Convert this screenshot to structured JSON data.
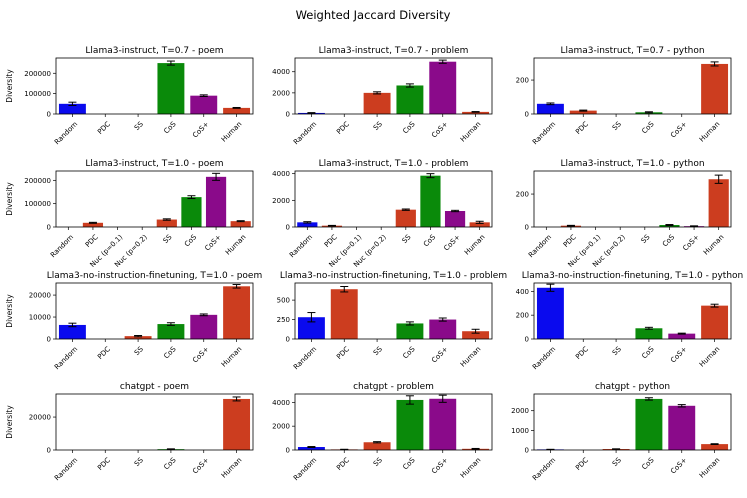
{
  "figure": {
    "title": "Weighted Jaccard Diversity",
    "ylabel": "Diversity"
  },
  "colors": {
    "Random": "#0a0aee",
    "PDC": "#cc3d1f",
    "Nuc (p=0.1)": "#cc3d1f",
    "Nuc (p=0.2)": "#cc3d1f",
    "SS": "#cc3d1f",
    "CoS": "#0a8a0a",
    "CoS+": "#8a0a8a",
    "Human": "#cc3d1f"
  },
  "chart_data": [
    {
      "type": "bar",
      "title": "Llama3-instruct, T=0.7 - poem",
      "categories": [
        "Random",
        "PDC",
        "SS",
        "CoS",
        "CoS+",
        "Human"
      ],
      "values": [
        50000,
        0,
        0,
        250000,
        90000,
        30000
      ],
      "errors": [
        8000,
        0,
        0,
        10000,
        4000,
        2000
      ],
      "ylim": [
        0,
        275000
      ],
      "yticks": [
        0,
        100000,
        200000
      ],
      "yticklabels": [
        "0",
        "100000",
        "200000"
      ],
      "ylabel": "Diversity"
    },
    {
      "type": "bar",
      "title": "Llama3-instruct, T=0.7 - problem",
      "categories": [
        "Random",
        "PDC",
        "SS",
        "CoS",
        "CoS+",
        "Human"
      ],
      "values": [
        100,
        0,
        2000,
        2700,
        4950,
        200
      ],
      "errors": [
        30,
        0,
        100,
        150,
        150,
        30
      ],
      "ylim": [
        0,
        5300
      ],
      "yticks": [
        0,
        2000,
        4000
      ],
      "yticklabels": [
        "0",
        "2000",
        "4000"
      ]
    },
    {
      "type": "bar",
      "title": "Llama3-instruct, T=0.7 - python",
      "categories": [
        "Random",
        "PDC",
        "SS",
        "CoS",
        "CoS+",
        "Human"
      ],
      "values": [
        60,
        20,
        0,
        10,
        0,
        295
      ],
      "errors": [
        5,
        3,
        0,
        3,
        0,
        12
      ],
      "ylim": [
        0,
        330
      ],
      "yticks": [
        0,
        200
      ],
      "yticklabels": [
        "0",
        "200"
      ]
    },
    {
      "type": "bar",
      "title": "Llama3-instruct, T=1.0 - poem",
      "categories": [
        "Random",
        "PDC",
        "Nuc (p=0.1)",
        "Nuc (p=0.2)",
        "SS",
        "CoS",
        "CoS+",
        "Human"
      ],
      "values": [
        0,
        18000,
        0,
        0,
        32000,
        128000,
        215000,
        25000
      ],
      "errors": [
        0,
        2000,
        0,
        0,
        3000,
        6000,
        15000,
        2000
      ],
      "ylim": [
        0,
        240000
      ],
      "yticks": [
        0,
        100000,
        200000
      ],
      "yticklabels": [
        "0",
        "100000",
        "200000"
      ],
      "ylabel": "Diversity"
    },
    {
      "type": "bar",
      "title": "Llama3-instruct, T=1.0 - problem",
      "categories": [
        "Random",
        "PDC",
        "Nuc (p=0.1)",
        "Nuc (p=0.2)",
        "SS",
        "CoS",
        "CoS+",
        "Human"
      ],
      "values": [
        350,
        100,
        0,
        0,
        1300,
        3850,
        1200,
        350
      ],
      "errors": [
        50,
        20,
        0,
        0,
        50,
        150,
        50,
        80
      ],
      "ylim": [
        0,
        4200
      ],
      "yticks": [
        0,
        2000,
        4000
      ],
      "yticklabels": [
        "0",
        "2000",
        "4000"
      ]
    },
    {
      "type": "bar",
      "title": "Llama3-instruct, T=1.0 - python",
      "categories": [
        "Random",
        "PDC",
        "Nuc (p=0.1)",
        "Nuc (p=0.2)",
        "SS",
        "CoS",
        "CoS+",
        "Human"
      ],
      "values": [
        0,
        8,
        0,
        0,
        0,
        12,
        5,
        290
      ],
      "errors": [
        0,
        2,
        0,
        0,
        0,
        3,
        2,
        25
      ],
      "ylim": [
        0,
        340
      ],
      "yticks": [
        0,
        200
      ],
      "yticklabels": [
        "0",
        "200"
      ]
    },
    {
      "type": "bar",
      "title": "Llama3-no-instruction-finetuning, T=1.0 - poem",
      "categories": [
        "Random",
        "PDC",
        "SS",
        "CoS",
        "CoS+",
        "Human"
      ],
      "values": [
        6400,
        0,
        1300,
        6800,
        11000,
        24000
      ],
      "errors": [
        800,
        0,
        300,
        600,
        400,
        800
      ],
      "ylim": [
        0,
        25500
      ],
      "yticks": [
        0,
        10000,
        20000
      ],
      "yticklabels": [
        "0",
        "10000",
        "20000"
      ],
      "ylabel": "Diversity"
    },
    {
      "type": "bar",
      "title": "Llama3-no-instruction-finetuning, T=1.0 - problem",
      "categories": [
        "Random",
        "PDC",
        "SS",
        "CoS",
        "CoS+",
        "Human"
      ],
      "values": [
        280,
        640,
        0,
        200,
        250,
        100
      ],
      "errors": [
        60,
        35,
        0,
        20,
        20,
        25
      ],
      "ylim": [
        0,
        720
      ],
      "yticks": [
        0,
        250,
        500
      ],
      "yticklabels": [
        "0",
        "250",
        "500"
      ]
    },
    {
      "type": "bar",
      "title": "Llama3-no-instruction-finetuning, T=1.0 - python",
      "categories": [
        "Random",
        "PDC",
        "SS",
        "CoS",
        "CoS+",
        "Human"
      ],
      "values": [
        430,
        0,
        0,
        90,
        45,
        280
      ],
      "errors": [
        30,
        0,
        0,
        8,
        4,
        12
      ],
      "ylim": [
        0,
        470
      ],
      "yticks": [
        0,
        200,
        400
      ],
      "yticklabels": [
        "0",
        "200",
        "400"
      ]
    },
    {
      "type": "bar",
      "title": "chatgpt - poem",
      "categories": [
        "Random",
        "PDC",
        "SS",
        "CoS",
        "CoS+",
        "Human"
      ],
      "values": [
        0,
        0,
        0,
        500,
        0,
        31000
      ],
      "errors": [
        0,
        0,
        0,
        200,
        0,
        1200
      ],
      "ylim": [
        0,
        34000
      ],
      "yticks": [
        0,
        20000
      ],
      "yticklabels": [
        "0",
        "20000"
      ],
      "ylabel": "Diversity"
    },
    {
      "type": "bar",
      "title": "chatgpt - problem",
      "categories": [
        "Random",
        "PDC",
        "SS",
        "CoS",
        "CoS+",
        "Human"
      ],
      "values": [
        250,
        50,
        650,
        4200,
        4300,
        100
      ],
      "errors": [
        40,
        10,
        50,
        350,
        300,
        30
      ],
      "ylim": [
        0,
        4700
      ],
      "yticks": [
        0,
        2000,
        4000
      ],
      "yticklabels": [
        "0",
        "2000",
        "4000"
      ]
    },
    {
      "type": "bar",
      "title": "chatgpt - python",
      "categories": [
        "Random",
        "PDC",
        "SS",
        "CoS",
        "CoS+",
        "Human"
      ],
      "values": [
        30,
        0,
        50,
        2600,
        2250,
        300
      ],
      "errors": [
        5,
        0,
        10,
        60,
        60,
        20
      ],
      "ylim": [
        0,
        2850
      ],
      "yticks": [
        0,
        1000,
        2000
      ],
      "yticklabels": [
        "0",
        "1000",
        "2000"
      ]
    }
  ]
}
